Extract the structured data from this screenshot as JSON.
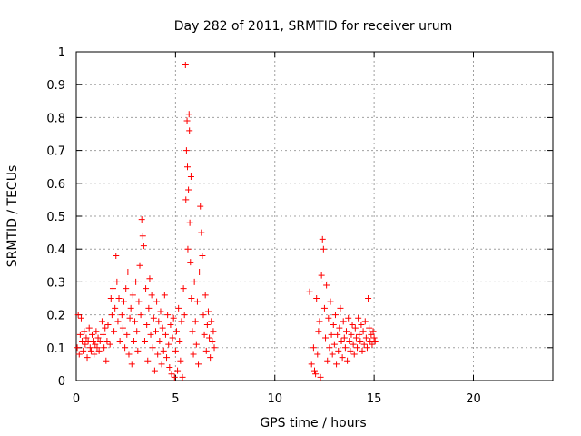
{
  "chart_data": {
    "type": "scatter",
    "title": "Day 282 of 2011, SRMTID for receiver urum",
    "xlabel": "GPS time / hours",
    "ylabel": "SRMTID / TECUs",
    "xlim": [
      0,
      24
    ],
    "ylim": [
      0,
      1
    ],
    "xticks": [
      "0",
      "5",
      "10",
      "15",
      "20"
    ],
    "xtick_values": [
      0,
      5,
      10,
      15,
      20
    ],
    "yticks": [
      "0",
      "0.1",
      "0.2",
      "0.3",
      "0.4",
      "0.5",
      "0.6",
      "0.7",
      "0.8",
      "0.9",
      "1"
    ],
    "ytick_values": [
      0,
      0.1,
      0.2,
      0.3,
      0.4,
      0.5,
      0.6,
      0.7,
      0.8,
      0.9,
      1
    ],
    "grid": true,
    "marker": "+",
    "color": "#ff0000",
    "series": [
      {
        "name": "SRMTID",
        "points": [
          [
            0.05,
            0.1
          ],
          [
            0.1,
            0.2
          ],
          [
            0.15,
            0.08
          ],
          [
            0.2,
            0.14
          ],
          [
            0.25,
            0.19
          ],
          [
            0.3,
            0.12
          ],
          [
            0.35,
            0.09
          ],
          [
            0.4,
            0.15
          ],
          [
            0.45,
            0.11
          ],
          [
            0.5,
            0.13
          ],
          [
            0.55,
            0.07
          ],
          [
            0.6,
            0.12
          ],
          [
            0.65,
            0.16
          ],
          [
            0.7,
            0.1
          ],
          [
            0.75,
            0.09
          ],
          [
            0.8,
            0.14
          ],
          [
            0.85,
            0.12
          ],
          [
            0.9,
            0.08
          ],
          [
            0.95,
            0.11
          ],
          [
            1.0,
            0.15
          ],
          [
            1.05,
            0.1
          ],
          [
            1.1,
            0.13
          ],
          [
            1.15,
            0.09
          ],
          [
            1.2,
            0.12
          ],
          [
            1.3,
            0.18
          ],
          [
            1.35,
            0.14
          ],
          [
            1.4,
            0.1
          ],
          [
            1.45,
            0.16
          ],
          [
            1.5,
            0.06
          ],
          [
            1.55,
            0.12
          ],
          [
            1.6,
            0.17
          ],
          [
            1.7,
            0.11
          ],
          [
            1.75,
            0.25
          ],
          [
            1.8,
            0.2
          ],
          [
            1.85,
            0.28
          ],
          [
            1.9,
            0.15
          ],
          [
            1.95,
            0.22
          ],
          [
            2.0,
            0.38
          ],
          [
            2.05,
            0.3
          ],
          [
            2.1,
            0.18
          ],
          [
            2.15,
            0.25
          ],
          [
            2.2,
            0.12
          ],
          [
            2.3,
            0.2
          ],
          [
            2.35,
            0.16
          ],
          [
            2.4,
            0.24
          ],
          [
            2.45,
            0.1
          ],
          [
            2.5,
            0.28
          ],
          [
            2.55,
            0.14
          ],
          [
            2.6,
            0.33
          ],
          [
            2.65,
            0.08
          ],
          [
            2.7,
            0.19
          ],
          [
            2.75,
            0.22
          ],
          [
            2.8,
            0.05
          ],
          [
            2.85,
            0.26
          ],
          [
            2.9,
            0.12
          ],
          [
            2.95,
            0.18
          ],
          [
            3.0,
            0.3
          ],
          [
            3.05,
            0.15
          ],
          [
            3.1,
            0.09
          ],
          [
            3.15,
            0.24
          ],
          [
            3.2,
            0.35
          ],
          [
            3.25,
            0.2
          ],
          [
            3.3,
            0.49
          ],
          [
            3.35,
            0.44
          ],
          [
            3.4,
            0.41
          ],
          [
            3.45,
            0.12
          ],
          [
            3.5,
            0.28
          ],
          [
            3.55,
            0.17
          ],
          [
            3.6,
            0.06
          ],
          [
            3.65,
            0.22
          ],
          [
            3.7,
            0.31
          ],
          [
            3.75,
            0.14
          ],
          [
            3.8,
            0.26
          ],
          [
            3.85,
            0.1
          ],
          [
            3.9,
            0.19
          ],
          [
            3.95,
            0.03
          ],
          [
            4.0,
            0.15
          ],
          [
            4.05,
            0.24
          ],
          [
            4.1,
            0.08
          ],
          [
            4.15,
            0.18
          ],
          [
            4.2,
            0.12
          ],
          [
            4.25,
            0.21
          ],
          [
            4.3,
            0.05
          ],
          [
            4.35,
            0.16
          ],
          [
            4.4,
            0.09
          ],
          [
            4.45,
            0.26
          ],
          [
            4.5,
            0.14
          ],
          [
            4.55,
            0.07
          ],
          [
            4.6,
            0.2
          ],
          [
            4.65,
            0.11
          ],
          [
            4.7,
            0.04
          ],
          [
            4.75,
            0.17
          ],
          [
            4.8,
            0.02
          ],
          [
            4.85,
            0.13
          ],
          [
            4.9,
            0.19
          ],
          [
            4.95,
            0.01
          ],
          [
            5.0,
            0.09
          ],
          [
            5.05,
            0.15
          ],
          [
            5.1,
            0.03
          ],
          [
            5.15,
            0.22
          ],
          [
            5.2,
            0.12
          ],
          [
            5.25,
            0.06
          ],
          [
            5.3,
            0.18
          ],
          [
            5.35,
            0.01
          ],
          [
            5.4,
            0.28
          ],
          [
            5.45,
            0.2
          ],
          [
            5.5,
            0.96
          ],
          [
            5.52,
            0.55
          ],
          [
            5.55,
            0.7
          ],
          [
            5.58,
            0.79
          ],
          [
            5.6,
            0.65
          ],
          [
            5.62,
            0.4
          ],
          [
            5.65,
            0.58
          ],
          [
            5.68,
            0.81
          ],
          [
            5.7,
            0.76
          ],
          [
            5.72,
            0.48
          ],
          [
            5.75,
            0.36
          ],
          [
            5.78,
            0.62
          ],
          [
            5.8,
            0.25
          ],
          [
            5.85,
            0.15
          ],
          [
            5.9,
            0.08
          ],
          [
            5.95,
            0.3
          ],
          [
            6.0,
            0.18
          ],
          [
            6.05,
            0.11
          ],
          [
            6.1,
            0.24
          ],
          [
            6.15,
            0.05
          ],
          [
            6.2,
            0.33
          ],
          [
            6.25,
            0.53
          ],
          [
            6.3,
            0.45
          ],
          [
            6.35,
            0.38
          ],
          [
            6.4,
            0.2
          ],
          [
            6.45,
            0.14
          ],
          [
            6.5,
            0.26
          ],
          [
            6.55,
            0.09
          ],
          [
            6.6,
            0.17
          ],
          [
            6.65,
            0.21
          ],
          [
            6.7,
            0.13
          ],
          [
            6.75,
            0.07
          ],
          [
            6.8,
            0.18
          ],
          [
            6.85,
            0.12
          ],
          [
            6.9,
            0.15
          ],
          [
            6.95,
            0.1
          ]
        ]
      },
      {
        "name": "SRMTID",
        "points": [
          [
            11.75,
            0.27
          ],
          [
            11.85,
            0.05
          ],
          [
            11.95,
            0.1
          ],
          [
            12.0,
            0.03
          ],
          [
            12.05,
            0.02
          ],
          [
            12.1,
            0.25
          ],
          [
            12.15,
            0.08
          ],
          [
            12.2,
            0.15
          ],
          [
            12.25,
            0.18
          ],
          [
            12.3,
            0.01
          ],
          [
            12.35,
            0.32
          ],
          [
            12.4,
            0.43
          ],
          [
            12.45,
            0.4
          ],
          [
            12.5,
            0.22
          ],
          [
            12.55,
            0.13
          ],
          [
            12.6,
            0.29
          ],
          [
            12.65,
            0.06
          ],
          [
            12.7,
            0.19
          ],
          [
            12.75,
            0.1
          ],
          [
            12.8,
            0.24
          ],
          [
            12.85,
            0.14
          ],
          [
            12.9,
            0.08
          ],
          [
            12.95,
            0.17
          ],
          [
            13.0,
            0.11
          ],
          [
            13.05,
            0.2
          ],
          [
            13.1,
            0.05
          ],
          [
            13.15,
            0.14
          ],
          [
            13.2,
            0.09
          ],
          [
            13.25,
            0.16
          ],
          [
            13.3,
            0.22
          ],
          [
            13.35,
            0.12
          ],
          [
            13.4,
            0.07
          ],
          [
            13.45,
            0.18
          ],
          [
            13.5,
            0.13
          ],
          [
            13.55,
            0.1
          ],
          [
            13.6,
            0.15
          ],
          [
            13.65,
            0.06
          ],
          [
            13.7,
            0.19
          ],
          [
            13.75,
            0.12
          ],
          [
            13.8,
            0.09
          ],
          [
            13.85,
            0.14
          ],
          [
            13.9,
            0.17
          ],
          [
            13.95,
            0.11
          ],
          [
            14.0,
            0.08
          ],
          [
            14.05,
            0.16
          ],
          [
            14.1,
            0.13
          ],
          [
            14.15,
            0.1
          ],
          [
            14.2,
            0.19
          ],
          [
            14.25,
            0.14
          ],
          [
            14.3,
            0.12
          ],
          [
            14.35,
            0.17
          ],
          [
            14.4,
            0.09
          ],
          [
            14.45,
            0.15
          ],
          [
            14.5,
            0.11
          ],
          [
            14.55,
            0.18
          ],
          [
            14.6,
            0.13
          ],
          [
            14.65,
            0.1
          ],
          [
            14.7,
            0.25
          ],
          [
            14.75,
            0.16
          ],
          [
            14.8,
            0.12
          ],
          [
            14.85,
            0.14
          ],
          [
            14.9,
            0.11
          ],
          [
            14.95,
            0.15
          ],
          [
            15.0,
            0.13
          ],
          [
            15.05,
            0.12
          ]
        ]
      }
    ]
  }
}
